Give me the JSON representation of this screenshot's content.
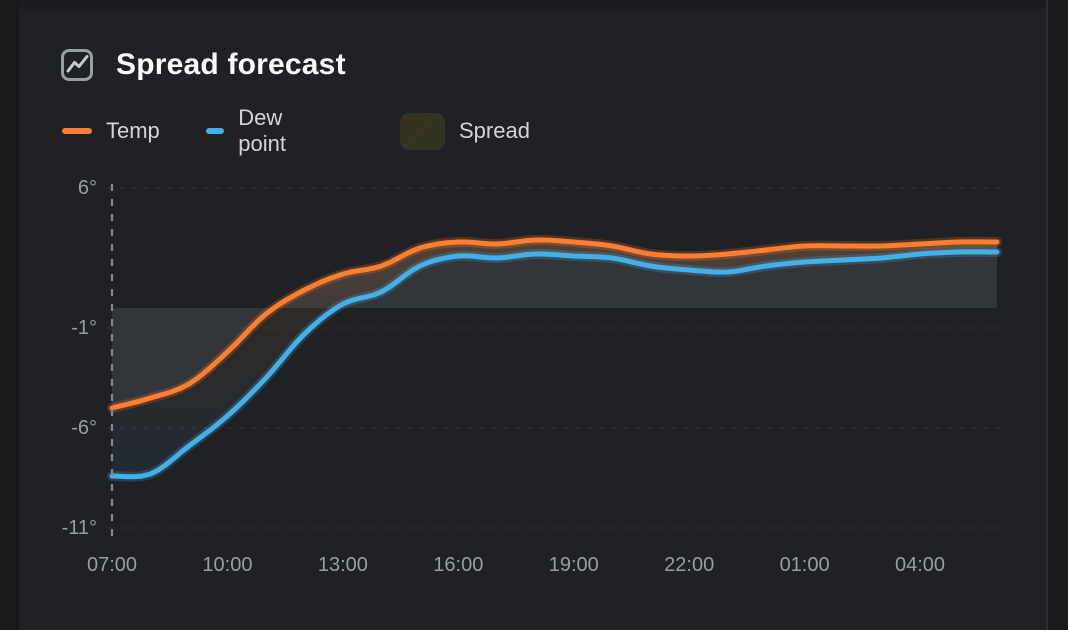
{
  "page": {
    "background": "#17181a",
    "panel_background": "#1f2124"
  },
  "panel": {
    "title": "Spread forecast",
    "title_icon": "timeseries-chart-icon"
  },
  "legend": {
    "items": [
      {
        "label": "Temp",
        "color": "#fd7e2e",
        "marker": "line"
      },
      {
        "label": "Dew point",
        "color": "#45b0e8",
        "marker": "line"
      },
      {
        "label": "Spread",
        "color": "#35311f",
        "marker": "area-swatch"
      }
    ]
  },
  "chart_data": {
    "type": "line",
    "title": "Spread forecast",
    "x": [
      "07:00",
      "08:00",
      "09:00",
      "10:00",
      "11:00",
      "12:00",
      "13:00",
      "14:00",
      "15:00",
      "16:00",
      "17:00",
      "18:00",
      "19:00",
      "20:00",
      "21:00",
      "22:00",
      "23:00",
      "00:00",
      "01:00",
      "02:00",
      "03:00",
      "04:00",
      "05:00",
      "06:00"
    ],
    "series": [
      {
        "name": "Temp",
        "color": "#fd7e2e",
        "values": [
          -5.0,
          -4.5,
          -3.8,
          -2.2,
          -0.3,
          0.9,
          1.7,
          2.1,
          3.0,
          3.3,
          3.2,
          3.4,
          3.3,
          3.1,
          2.7,
          2.6,
          2.7,
          2.9,
          3.1,
          3.1,
          3.1,
          3.2,
          3.3,
          3.3
        ]
      },
      {
        "name": "Dew point",
        "color": "#45b0e8",
        "values": [
          -8.4,
          -8.3,
          -6.9,
          -5.4,
          -3.5,
          -1.3,
          0.2,
          0.8,
          2.1,
          2.6,
          2.5,
          2.7,
          2.6,
          2.5,
          2.1,
          1.9,
          1.8,
          2.1,
          2.3,
          2.4,
          2.5,
          2.7,
          2.8,
          2.8
        ]
      },
      {
        "name": "Spread",
        "type": "area-between",
        "between": [
          "Temp",
          "Dew point"
        ]
      }
    ],
    "x_tick_labels": [
      "07:00",
      "10:00",
      "13:00",
      "16:00",
      "19:00",
      "22:00",
      "01:00",
      "04:00"
    ],
    "x_tick_indices": [
      0,
      3,
      6,
      9,
      12,
      15,
      18,
      21
    ],
    "y_ticks": [
      {
        "value": 6,
        "label": "6°"
      },
      {
        "value": -1,
        "label": "-1°"
      },
      {
        "value": -6,
        "label": "-6°"
      },
      {
        "value": -11,
        "label": "-11°"
      }
    ],
    "ylim": [
      -11.9,
      6.2
    ],
    "grid": "dashed-horizontal",
    "legend_position": "top",
    "unit": "°",
    "annotations": [
      {
        "type": "vline",
        "at_x": "07:00",
        "style": "dashed"
      }
    ],
    "baseline_band": {
      "series": "Temp",
      "to_value": 0,
      "color": "rgba(212,218,226,0.11)"
    }
  }
}
